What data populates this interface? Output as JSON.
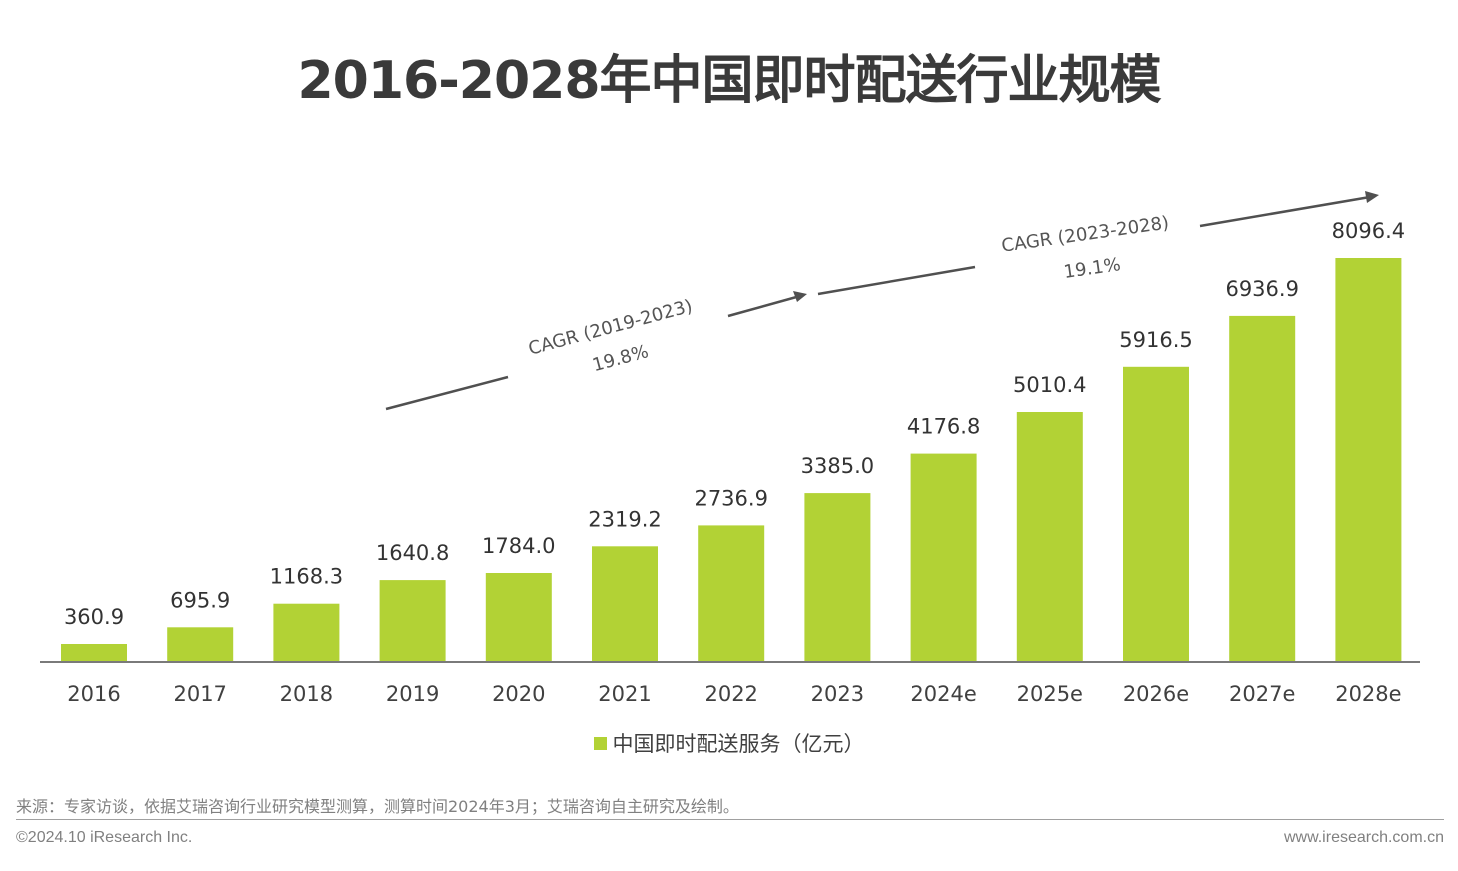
{
  "title": "2016-2028年中国即时配送行业规模",
  "chart_data": {
    "type": "bar",
    "categories": [
      "2016",
      "2017",
      "2018",
      "2019",
      "2020",
      "2021",
      "2022",
      "2023",
      "2024e",
      "2025e",
      "2026e",
      "2027e",
      "2028e"
    ],
    "series": [
      {
        "name": "中国即时配送服务（亿元）",
        "values": [
          360.9,
          695.9,
          1168.3,
          1640.8,
          1784.0,
          2319.2,
          2736.9,
          3385.0,
          4176.8,
          5010.4,
          5916.5,
          6936.9,
          8096.4
        ],
        "labels": [
          "360.9",
          "695.9",
          "1168.3",
          "1640.8",
          "1784.0",
          "2319.2",
          "2736.9",
          "3385.0",
          "4176.8",
          "5010.4",
          "5916.5",
          "6936.9",
          "8096.4"
        ],
        "color": "#b2d235"
      }
    ],
    "annotations": [
      {
        "label": "CAGR (2019-2023)",
        "value": "19.8%"
      },
      {
        "label": "CAGR (2023-2028)",
        "value": "19.1%"
      }
    ],
    "legend": "bottom-center"
  },
  "legend_label": "中国即时配送服务（亿元）",
  "footer": {
    "source": "来源：专家访谈，依据艾瑞咨询行业研究模型测算，测算时间2024年3月；艾瑞咨询自主研究及绘制。",
    "copyright": "©2024.10 iResearch Inc.",
    "website": "www.iresearch.com.cn"
  }
}
